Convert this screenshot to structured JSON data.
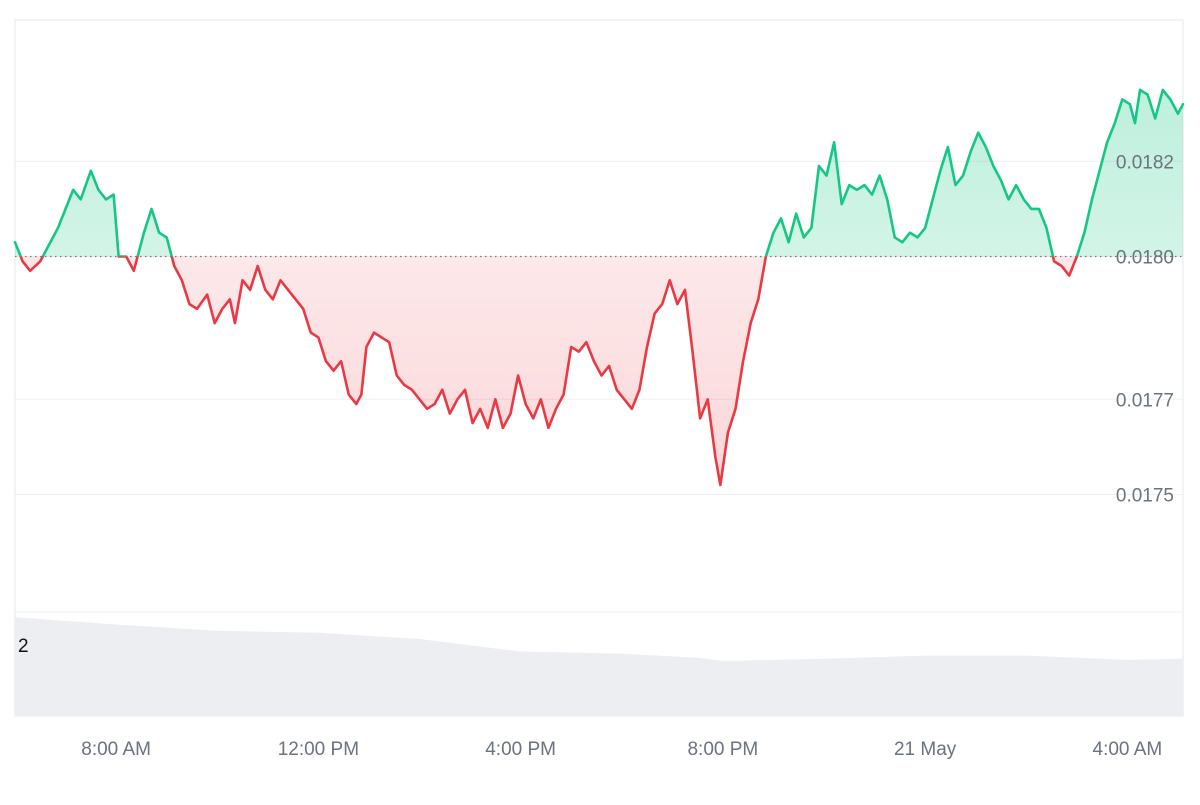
{
  "colors": {
    "up": "#16c784",
    "down": "#ea3943",
    "up_fill": "#16c784",
    "down_fill": "#ea3943",
    "volume": "#eceef2",
    "text": "#6b7280"
  },
  "chart_data": {
    "type": "area",
    "title": "",
    "xlabel": "",
    "ylabel": "",
    "baseline": 0.018,
    "ylim": [
      0.0173,
      0.01835
    ],
    "y_ticks": [
      "0.0175",
      "0.0177",
      "0.0180",
      "0.0182"
    ],
    "y_tick_values": [
      0.0175,
      0.0177,
      0.018,
      0.0182
    ],
    "x_ticks": [
      "8:00 AM",
      "12:00 PM",
      "4:00 PM",
      "8:00 PM",
      "21 May",
      "4:00 AM"
    ],
    "x_tick_hours": [
      8,
      12,
      16,
      20,
      24,
      28
    ],
    "x_range_hours": [
      6.0,
      29.1
    ],
    "grid": true,
    "series": [
      {
        "points": [
          [
            6.0,
            0.01803
          ],
          [
            6.15,
            0.01799
          ],
          [
            6.3,
            0.01797
          ],
          [
            6.5,
            0.01799
          ],
          [
            6.7,
            0.01803
          ],
          [
            6.85,
            0.01806
          ],
          [
            7.0,
            0.0181
          ],
          [
            7.15,
            0.01814
          ],
          [
            7.3,
            0.01812
          ],
          [
            7.5,
            0.01818
          ],
          [
            7.65,
            0.01814
          ],
          [
            7.8,
            0.01812
          ],
          [
            7.95,
            0.01813
          ],
          [
            8.05,
            0.018
          ],
          [
            8.2,
            0.018
          ],
          [
            8.35,
            0.01797
          ],
          [
            8.45,
            0.01801
          ],
          [
            8.55,
            0.01805
          ],
          [
            8.7,
            0.0181
          ],
          [
            8.85,
            0.01805
          ],
          [
            9.0,
            0.01804
          ],
          [
            9.15,
            0.01798
          ],
          [
            9.3,
            0.01795
          ],
          [
            9.45,
            0.0179
          ],
          [
            9.6,
            0.01789
          ],
          [
            9.8,
            0.01792
          ],
          [
            9.95,
            0.01786
          ],
          [
            10.1,
            0.01789
          ],
          [
            10.25,
            0.01791
          ],
          [
            10.35,
            0.01786
          ],
          [
            10.5,
            0.01795
          ],
          [
            10.65,
            0.01793
          ],
          [
            10.8,
            0.01798
          ],
          [
            10.95,
            0.01793
          ],
          [
            11.1,
            0.01791
          ],
          [
            11.25,
            0.01795
          ],
          [
            11.4,
            0.01793
          ],
          [
            11.55,
            0.01791
          ],
          [
            11.7,
            0.01789
          ],
          [
            11.85,
            0.01784
          ],
          [
            12.0,
            0.01783
          ],
          [
            12.15,
            0.01778
          ],
          [
            12.3,
            0.01776
          ],
          [
            12.45,
            0.01778
          ],
          [
            12.6,
            0.01771
          ],
          [
            12.75,
            0.01769
          ],
          [
            12.85,
            0.01771
          ],
          [
            12.95,
            0.01781
          ],
          [
            13.1,
            0.01784
          ],
          [
            13.25,
            0.01783
          ],
          [
            13.4,
            0.01782
          ],
          [
            13.55,
            0.01775
          ],
          [
            13.7,
            0.01773
          ],
          [
            13.85,
            0.01772
          ],
          [
            14.0,
            0.0177
          ],
          [
            14.15,
            0.01768
          ],
          [
            14.3,
            0.01769
          ],
          [
            14.45,
            0.01772
          ],
          [
            14.6,
            0.01767
          ],
          [
            14.75,
            0.0177
          ],
          [
            14.9,
            0.01772
          ],
          [
            15.05,
            0.01765
          ],
          [
            15.2,
            0.01768
          ],
          [
            15.35,
            0.01764
          ],
          [
            15.5,
            0.0177
          ],
          [
            15.65,
            0.01764
          ],
          [
            15.8,
            0.01767
          ],
          [
            15.95,
            0.01775
          ],
          [
            16.1,
            0.01769
          ],
          [
            16.25,
            0.01766
          ],
          [
            16.4,
            0.0177
          ],
          [
            16.55,
            0.01764
          ],
          [
            16.7,
            0.01768
          ],
          [
            16.85,
            0.01771
          ],
          [
            17.0,
            0.01781
          ],
          [
            17.15,
            0.0178
          ],
          [
            17.3,
            0.01782
          ],
          [
            17.45,
            0.01778
          ],
          [
            17.6,
            0.01775
          ],
          [
            17.75,
            0.01777
          ],
          [
            17.9,
            0.01772
          ],
          [
            18.05,
            0.0177
          ],
          [
            18.2,
            0.01768
          ],
          [
            18.35,
            0.01772
          ],
          [
            18.5,
            0.01781
          ],
          [
            18.65,
            0.01788
          ],
          [
            18.8,
            0.0179
          ],
          [
            18.95,
            0.01795
          ],
          [
            19.1,
            0.0179
          ],
          [
            19.25,
            0.01793
          ],
          [
            19.4,
            0.0178
          ],
          [
            19.55,
            0.01766
          ],
          [
            19.7,
            0.0177
          ],
          [
            19.85,
            0.01758
          ],
          [
            19.95,
            0.01752
          ],
          [
            20.1,
            0.01763
          ],
          [
            20.25,
            0.01768
          ],
          [
            20.4,
            0.01778
          ],
          [
            20.55,
            0.01786
          ],
          [
            20.7,
            0.01791
          ],
          [
            20.85,
            0.018
          ],
          [
            21.0,
            0.01805
          ],
          [
            21.15,
            0.01808
          ],
          [
            21.3,
            0.01803
          ],
          [
            21.45,
            0.01809
          ],
          [
            21.6,
            0.01804
          ],
          [
            21.75,
            0.01806
          ],
          [
            21.9,
            0.01819
          ],
          [
            22.05,
            0.01817
          ],
          [
            22.2,
            0.01824
          ],
          [
            22.35,
            0.01811
          ],
          [
            22.5,
            0.01815
          ],
          [
            22.65,
            0.01814
          ],
          [
            22.8,
            0.01815
          ],
          [
            22.95,
            0.01813
          ],
          [
            23.1,
            0.01817
          ],
          [
            23.25,
            0.01812
          ],
          [
            23.4,
            0.01804
          ],
          [
            23.55,
            0.01803
          ],
          [
            23.7,
            0.01805
          ],
          [
            23.85,
            0.01804
          ],
          [
            24.0,
            0.01806
          ],
          [
            24.15,
            0.01812
          ],
          [
            24.3,
            0.01818
          ],
          [
            24.45,
            0.01823
          ],
          [
            24.6,
            0.01815
          ],
          [
            24.75,
            0.01817
          ],
          [
            24.9,
            0.01822
          ],
          [
            25.05,
            0.01826
          ],
          [
            25.2,
            0.01823
          ],
          [
            25.35,
            0.01819
          ],
          [
            25.5,
            0.01816
          ],
          [
            25.65,
            0.01812
          ],
          [
            25.8,
            0.01815
          ],
          [
            25.95,
            0.01812
          ],
          [
            26.1,
            0.0181
          ],
          [
            26.25,
            0.0181
          ],
          [
            26.4,
            0.01806
          ],
          [
            26.55,
            0.01799
          ],
          [
            26.7,
            0.01798
          ],
          [
            26.85,
            0.01796
          ],
          [
            27.0,
            0.018
          ],
          [
            27.15,
            0.01805
          ],
          [
            27.3,
            0.01812
          ],
          [
            27.45,
            0.01818
          ],
          [
            27.6,
            0.01824
          ],
          [
            27.75,
            0.01828
          ],
          [
            27.9,
            0.01833
          ],
          [
            28.05,
            0.01832
          ],
          [
            28.15,
            0.01828
          ],
          [
            28.25,
            0.01835
          ],
          [
            28.4,
            0.01834
          ],
          [
            28.55,
            0.01829
          ],
          [
            28.7,
            0.01835
          ],
          [
            28.85,
            0.01833
          ],
          [
            29.0,
            0.0183
          ],
          [
            29.1,
            0.01832
          ]
        ]
      }
    ],
    "volume": {
      "label": "2",
      "points": [
        [
          6.0,
          0.95
        ],
        [
          8.0,
          0.88
        ],
        [
          10.0,
          0.82
        ],
        [
          12.0,
          0.8
        ],
        [
          14.0,
          0.74
        ],
        [
          16.0,
          0.62
        ],
        [
          18.0,
          0.6
        ],
        [
          19.5,
          0.56
        ],
        [
          20.0,
          0.53
        ],
        [
          22.0,
          0.55
        ],
        [
          24.0,
          0.58
        ],
        [
          26.0,
          0.58
        ],
        [
          28.0,
          0.54
        ],
        [
          29.1,
          0.55
        ]
      ]
    }
  }
}
